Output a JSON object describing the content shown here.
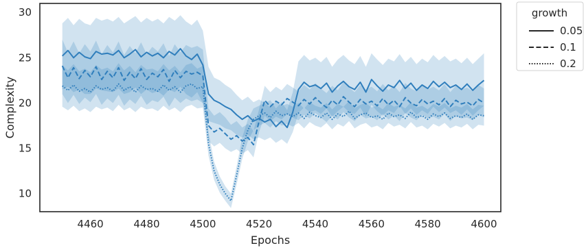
{
  "chart_data": {
    "type": "line",
    "xlabel": "Epochs",
    "ylabel": "Complexity",
    "xlim": [
      4442,
      4606
    ],
    "ylim": [
      8,
      31
    ],
    "xticks": [
      4460,
      4480,
      4500,
      4520,
      4540,
      4560,
      4580,
      4600
    ],
    "yticks": [
      10,
      15,
      20,
      25,
      30
    ],
    "grid": false,
    "legend": {
      "title": "growth",
      "position": "outside-top-right"
    },
    "x": [
      4450,
      4452,
      4454,
      4456,
      4458,
      4460,
      4462,
      4464,
      4466,
      4468,
      4470,
      4472,
      4474,
      4476,
      4478,
      4480,
      4482,
      4484,
      4486,
      4488,
      4490,
      4492,
      4494,
      4496,
      4498,
      4500,
      4502,
      4504,
      4506,
      4508,
      4510,
      4512,
      4514,
      4516,
      4518,
      4520,
      4522,
      4524,
      4526,
      4528,
      4530,
      4532,
      4534,
      4536,
      4538,
      4540,
      4542,
      4544,
      4546,
      4548,
      4550,
      4552,
      4554,
      4556,
      4558,
      4560,
      4562,
      4564,
      4566,
      4568,
      4570,
      4572,
      4574,
      4576,
      4578,
      4580,
      4582,
      4584,
      4586,
      4588,
      4590,
      4592,
      4594,
      4596,
      4598,
      4600
    ],
    "series": [
      {
        "name": "0.05",
        "dash": "solid",
        "color": "#2f7ebc",
        "mean": [
          25.2,
          25.8,
          25.0,
          25.6,
          25.1,
          24.9,
          25.7,
          25.4,
          25.5,
          25.3,
          25.8,
          25.0,
          25.4,
          25.9,
          25.1,
          25.6,
          25.2,
          25.5,
          25.0,
          25.7,
          25.3,
          26.0,
          25.2,
          24.8,
          25.4,
          24.2,
          21.0,
          20.3,
          20.0,
          19.6,
          19.3,
          18.7,
          18.2,
          18.6,
          18.0,
          18.3,
          17.9,
          18.2,
          17.4,
          18.0,
          17.3,
          19.0,
          21.5,
          22.3,
          21.8,
          22.0,
          21.6,
          22.2,
          21.2,
          21.9,
          22.4,
          21.8,
          21.5,
          22.3,
          21.2,
          22.6,
          21.9,
          21.3,
          22.0,
          21.7,
          22.5,
          21.6,
          22.2,
          21.4,
          22.0,
          21.6,
          22.4,
          21.8,
          22.3,
          21.7,
          22.0,
          21.5,
          22.1,
          21.4,
          22.0,
          22.5
        ],
        "lower": [
          21.5,
          21.8,
          21.2,
          21.5,
          21.0,
          21.0,
          21.6,
          21.4,
          21.3,
          21.2,
          21.6,
          21.0,
          21.2,
          21.7,
          21.0,
          21.5,
          21.1,
          21.3,
          20.8,
          21.5,
          21.2,
          21.8,
          21.0,
          20.6,
          21.2,
          20.0,
          18.0,
          17.8,
          17.6,
          17.2,
          17.0,
          16.5,
          16.2,
          16.5,
          16.0,
          16.2,
          15.9,
          16.2,
          15.6,
          16.0,
          15.5,
          16.8,
          18.9,
          19.5,
          19.0,
          19.2,
          18.8,
          19.4,
          18.5,
          19.1,
          19.6,
          19.0,
          18.8,
          19.5,
          18.5,
          19.8,
          19.1,
          18.6,
          19.2,
          18.9,
          19.7,
          18.8,
          19.4,
          18.7,
          19.2,
          18.8,
          19.6,
          19.0,
          19.5,
          18.9,
          19.2,
          18.7,
          19.3,
          18.6,
          19.2,
          19.7
        ],
        "upper": [
          28.8,
          29.4,
          28.6,
          29.3,
          28.8,
          28.6,
          29.4,
          29.1,
          29.3,
          29.0,
          29.5,
          28.8,
          29.2,
          29.6,
          28.9,
          29.4,
          29.0,
          29.3,
          28.8,
          29.5,
          29.1,
          29.7,
          29.0,
          28.6,
          29.2,
          28.0,
          24.0,
          22.8,
          22.5,
          22.0,
          21.6,
          20.9,
          20.3,
          20.7,
          20.1,
          20.4,
          20.0,
          20.3,
          19.4,
          20.1,
          19.2,
          21.2,
          24.6,
          25.3,
          24.7,
          25.0,
          24.5,
          25.1,
          24.0,
          24.8,
          25.3,
          24.7,
          24.3,
          25.2,
          24.0,
          25.5,
          24.8,
          24.2,
          24.9,
          24.6,
          25.4,
          24.5,
          25.1,
          24.3,
          24.9,
          24.5,
          25.3,
          24.7,
          25.2,
          24.6,
          24.9,
          24.4,
          25.0,
          24.3,
          24.9,
          25.5
        ]
      },
      {
        "name": "0.1",
        "dash": "dashed",
        "color": "#2f7ebc",
        "mean": [
          24.1,
          22.8,
          23.9,
          22.7,
          23.6,
          22.9,
          24.0,
          22.6,
          23.5,
          22.8,
          23.9,
          22.5,
          23.4,
          22.7,
          23.8,
          22.6,
          23.3,
          22.9,
          23.7,
          22.4,
          23.6,
          22.8,
          23.5,
          23.2,
          23.4,
          23.0,
          17.5,
          16.8,
          17.2,
          16.6,
          16.0,
          16.4,
          15.8,
          16.2,
          15.4,
          18.0,
          20.3,
          19.6,
          20.2,
          19.8,
          20.5,
          20.1,
          19.7,
          20.4,
          19.9,
          20.6,
          20.0,
          19.5,
          20.3,
          19.8,
          20.7,
          20.1,
          19.6,
          20.4,
          19.9,
          20.2,
          19.7,
          20.5,
          19.8,
          20.3,
          19.6,
          20.6,
          20.0,
          19.7,
          20.4,
          19.9,
          20.2,
          19.8,
          20.5,
          19.6,
          20.3,
          19.9,
          20.1,
          19.7,
          20.4,
          20.0
        ],
        "lower": [
          21.0,
          20.0,
          20.9,
          19.9,
          20.6,
          20.1,
          21.0,
          19.8,
          20.5,
          20.0,
          20.9,
          19.7,
          20.4,
          19.9,
          20.8,
          19.8,
          20.3,
          20.1,
          20.7,
          19.6,
          20.6,
          20.0,
          20.5,
          20.2,
          20.4,
          20.0,
          15.8,
          15.2,
          15.6,
          15.0,
          14.6,
          14.9,
          14.4,
          14.8,
          14.0,
          16.8,
          18.6,
          18.0,
          18.5,
          18.2,
          18.8,
          18.4,
          18.1,
          18.7,
          18.3,
          18.9,
          18.4,
          17.9,
          18.6,
          18.2,
          19.0,
          18.4,
          18.0,
          18.7,
          18.3,
          18.5,
          18.1,
          18.8,
          18.2,
          18.6,
          18.0,
          18.9,
          18.4,
          18.1,
          18.7,
          18.3,
          18.5,
          18.2,
          18.8,
          18.0,
          18.6,
          18.3,
          18.4,
          18.1,
          18.7,
          18.4
        ],
        "upper": [
          27.0,
          25.6,
          26.8,
          25.5,
          26.5,
          25.7,
          26.9,
          25.4,
          26.4,
          25.6,
          26.8,
          25.3,
          26.3,
          25.5,
          26.7,
          25.4,
          26.2,
          25.7,
          26.6,
          25.2,
          26.5,
          25.6,
          26.4,
          26.1,
          26.3,
          25.9,
          19.4,
          18.6,
          19.0,
          18.4,
          17.6,
          18.0,
          17.3,
          17.7,
          16.9,
          19.3,
          21.9,
          21.2,
          21.8,
          21.4,
          22.1,
          21.7,
          21.3,
          22.0,
          21.5,
          22.2,
          21.6,
          21.1,
          21.9,
          21.4,
          22.3,
          21.7,
          21.2,
          22.0,
          21.5,
          21.8,
          21.3,
          22.1,
          21.4,
          21.9,
          21.2,
          22.2,
          21.6,
          21.3,
          22.0,
          21.5,
          21.8,
          21.4,
          22.1,
          21.2,
          21.9,
          21.5,
          21.7,
          21.3,
          22.0,
          21.6
        ]
      },
      {
        "name": "0.2",
        "dash": "dotted",
        "color": "#2f7ebc",
        "mean": [
          21.9,
          21.4,
          22.0,
          21.3,
          21.6,
          21.2,
          21.9,
          21.5,
          21.7,
          21.3,
          22.1,
          21.4,
          21.8,
          21.2,
          21.9,
          21.5,
          21.6,
          21.3,
          22.0,
          21.4,
          21.8,
          21.2,
          21.9,
          22.1,
          21.6,
          21.8,
          15.5,
          12.5,
          11.0,
          10.0,
          9.2,
          12.0,
          15.0,
          17.0,
          18.2,
          18.6,
          18.9,
          18.4,
          19.1,
          18.6,
          18.8,
          18.5,
          18.9,
          18.3,
          19.0,
          18.6,
          18.4,
          18.9,
          18.2,
          18.8,
          18.5,
          19.1,
          18.3,
          18.7,
          18.9,
          18.4,
          18.6,
          18.2,
          18.9,
          18.5,
          18.7,
          18.3,
          19.0,
          18.4,
          18.6,
          18.2,
          18.8,
          18.5,
          18.9,
          18.3,
          18.6,
          18.4,
          18.8,
          18.2,
          18.7,
          18.6
        ],
        "lower": [
          19.6,
          19.2,
          19.7,
          19.1,
          19.4,
          19.0,
          19.6,
          19.3,
          19.5,
          19.1,
          19.8,
          19.2,
          19.5,
          19.0,
          19.6,
          19.3,
          19.4,
          19.1,
          19.7,
          19.2,
          19.5,
          19.0,
          19.6,
          19.8,
          19.4,
          19.5,
          14.2,
          11.5,
          10.1,
          9.2,
          8.4,
          11.0,
          13.8,
          15.8,
          17.0,
          17.5,
          17.8,
          17.3,
          18.0,
          17.5,
          17.7,
          17.4,
          17.8,
          17.2,
          17.9,
          17.5,
          17.3,
          17.8,
          17.1,
          17.7,
          17.4,
          18.0,
          17.2,
          17.6,
          17.8,
          17.3,
          17.5,
          17.1,
          17.8,
          17.4,
          17.6,
          17.2,
          17.9,
          17.3,
          17.5,
          17.1,
          17.7,
          17.4,
          17.8,
          17.2,
          17.5,
          17.3,
          17.7,
          17.1,
          17.6,
          17.5
        ],
        "upper": [
          24.2,
          23.6,
          24.3,
          23.5,
          23.8,
          23.4,
          24.2,
          23.7,
          23.9,
          23.5,
          24.4,
          23.6,
          24.1,
          23.4,
          24.2,
          23.7,
          23.8,
          23.5,
          24.3,
          23.6,
          24.1,
          23.4,
          24.2,
          24.4,
          23.8,
          24.1,
          16.8,
          13.5,
          11.9,
          10.8,
          10.0,
          13.0,
          16.2,
          18.2,
          19.4,
          19.7,
          20.0,
          19.5,
          20.2,
          19.7,
          19.9,
          19.6,
          20.0,
          19.4,
          20.1,
          19.7,
          19.5,
          20.0,
          19.3,
          19.9,
          19.6,
          20.2,
          19.4,
          19.8,
          20.0,
          19.5,
          19.7,
          19.3,
          20.0,
          19.6,
          19.8,
          19.4,
          20.1,
          19.5,
          19.7,
          19.3,
          19.9,
          19.6,
          20.0,
          19.4,
          19.7,
          19.5,
          19.9,
          19.3,
          19.8,
          19.7
        ]
      }
    ]
  }
}
